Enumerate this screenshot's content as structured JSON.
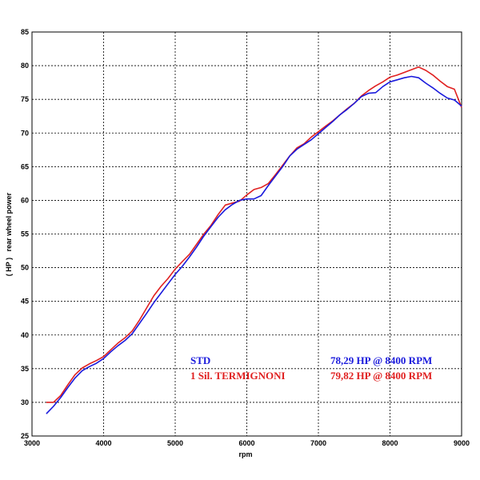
{
  "chart_data": {
    "type": "line",
    "title": "",
    "xlabel": "rpm",
    "ylabel": "( HP )   rear wheel power",
    "xlim": [
      3000,
      9000
    ],
    "ylim": [
      25,
      85
    ],
    "xticks": [
      3000,
      4000,
      5000,
      6000,
      7000,
      8000,
      9000
    ],
    "yticks": [
      25,
      30,
      35,
      40,
      45,
      50,
      55,
      60,
      65,
      70,
      75,
      80,
      85
    ],
    "grid": true,
    "legend_placement": "bottom-right",
    "series": [
      {
        "name": "STD",
        "summary": "78,29 HP @ 8400 RPM",
        "color": "#1a1adc",
        "x": [
          3200,
          3300,
          3400,
          3500,
          3600,
          3700,
          3800,
          3900,
          4000,
          4100,
          4200,
          4300,
          4400,
          4500,
          4600,
          4700,
          4800,
          4900,
          5000,
          5100,
          5200,
          5300,
          5400,
          5500,
          5600,
          5700,
          5800,
          5900,
          6000,
          6100,
          6200,
          6300,
          6400,
          6500,
          6600,
          6700,
          6800,
          6900,
          7000,
          7100,
          7200,
          7300,
          7400,
          7500,
          7600,
          7700,
          7800,
          7900,
          8000,
          8100,
          8200,
          8300,
          8400,
          8500,
          8600,
          8700,
          8800,
          8900,
          9000
        ],
        "values": [
          28.3,
          29.4,
          30.7,
          32.2,
          33.6,
          34.7,
          35.3,
          35.8,
          36.5,
          37.5,
          38.4,
          39.2,
          40.2,
          41.7,
          43.2,
          44.8,
          46.2,
          47.6,
          49.0,
          50.2,
          51.6,
          53.1,
          54.7,
          56.1,
          57.5,
          58.6,
          59.4,
          60.0,
          60.2,
          60.2,
          60.7,
          62.2,
          63.6,
          65.0,
          66.6,
          67.6,
          68.3,
          69.0,
          69.9,
          70.8,
          71.7,
          72.7,
          73.5,
          74.4,
          75.4,
          75.9,
          76.0,
          76.9,
          77.6,
          77.9,
          78.2,
          78.4,
          78.2,
          77.4,
          76.7,
          75.9,
          75.2,
          74.9,
          74.0
        ]
      },
      {
        "name": "1 Sil. TERMIGNONI",
        "summary": "79,82 HP @ 8400 RPM",
        "color": "#e02020",
        "x": [
          3200,
          3300,
          3400,
          3500,
          3600,
          3700,
          3800,
          3900,
          4000,
          4100,
          4200,
          4300,
          4400,
          4500,
          4600,
          4700,
          4800,
          4900,
          5000,
          5100,
          5200,
          5300,
          5400,
          5500,
          5600,
          5700,
          5800,
          5900,
          6000,
          6100,
          6200,
          6300,
          6400,
          6500,
          6600,
          6700,
          6800,
          6900,
          7000,
          7100,
          7200,
          7300,
          7400,
          7500,
          7600,
          7700,
          7800,
          7900,
          8000,
          8100,
          8200,
          8300,
          8400,
          8500,
          8600,
          8700,
          8800,
          8900,
          9000
        ],
        "values": [
          30.0,
          30.0,
          31.0,
          32.6,
          34.1,
          35.1,
          35.7,
          36.2,
          36.8,
          37.8,
          38.8,
          39.6,
          40.6,
          42.2,
          44.0,
          45.8,
          47.2,
          48.4,
          49.8,
          50.9,
          52.0,
          53.5,
          55.0,
          56.3,
          57.9,
          59.3,
          59.6,
          59.9,
          60.8,
          61.6,
          61.9,
          62.5,
          63.8,
          65.2,
          66.6,
          67.8,
          68.4,
          69.4,
          70.2,
          71.0,
          71.8,
          72.7,
          73.6,
          74.4,
          75.5,
          76.3,
          77.0,
          77.6,
          78.3,
          78.6,
          79.0,
          79.4,
          79.8,
          79.3,
          78.6,
          77.7,
          76.9,
          76.5,
          73.8
        ]
      }
    ]
  }
}
